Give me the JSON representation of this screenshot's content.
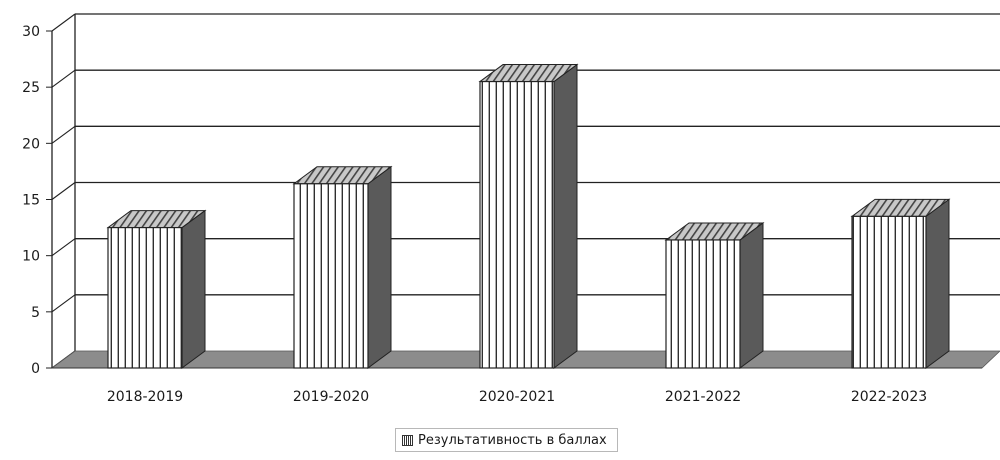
{
  "chart_data": {
    "type": "bar",
    "title": "",
    "xlabel": "",
    "ylabel": "",
    "categories": [
      "2018-2019",
      "2019-2020",
      "2020-2021",
      "2021-2022",
      "2022-2023"
    ],
    "series": [
      {
        "name": "Результативность в баллах",
        "values": [
          12.5,
          16.4,
          25.5,
          11.4,
          13.5
        ]
      }
    ],
    "ylim": [
      0,
      30
    ],
    "yticks": [
      "0",
      "5",
      "10",
      "15",
      "20",
      "25",
      "30"
    ],
    "grid": true,
    "legend_position": "bottom",
    "style": "3d-column",
    "colors": {
      "bar_fill": "#ffffff",
      "bar_stripes": "#2f2f2f",
      "bar_side": "#5a5a5a",
      "floor": "#8c8c8c",
      "gridlines": "#222222"
    }
  }
}
